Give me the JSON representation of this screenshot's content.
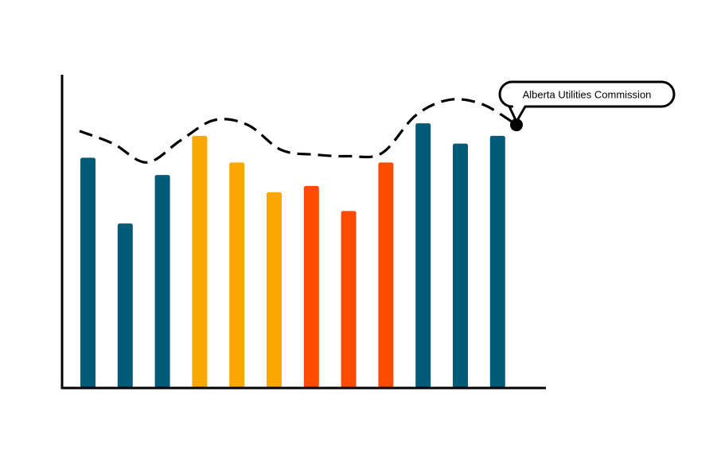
{
  "chart_data": {
    "type": "bar",
    "title": "",
    "xlabel": "",
    "ylabel": "",
    "ylim": [
      0,
      100
    ],
    "grid": false,
    "bars": [
      {
        "value": 73.5,
        "color": "#015a78"
      },
      {
        "value": 52.5,
        "color": "#015a78"
      },
      {
        "value": 68.0,
        "color": "#015a78"
      },
      {
        "value": 80.5,
        "color": "#fca600"
      },
      {
        "value": 72.0,
        "color": "#fca600"
      },
      {
        "value": 62.5,
        "color": "#fca600"
      },
      {
        "value": 64.5,
        "color": "#ff4b00"
      },
      {
        "value": 56.5,
        "color": "#ff4b00"
      },
      {
        "value": 72.0,
        "color": "#ff4b00"
      },
      {
        "value": 84.5,
        "color": "#015a78"
      },
      {
        "value": 78.0,
        "color": "#015a78"
      },
      {
        "value": 80.5,
        "color": "#015a78"
      }
    ],
    "trend_line": {
      "style": "dashed",
      "color": "#000000",
      "values": [
        82.0,
        78.0,
        72.0,
        79.0,
        85.5,
        84.0,
        76.0,
        74.5,
        74.0,
        75.0,
        87.0,
        92.0,
        90.5,
        84.0
      ]
    },
    "annotation": {
      "text": "Alberta Utilities Commission",
      "at_value": 84.0
    }
  }
}
